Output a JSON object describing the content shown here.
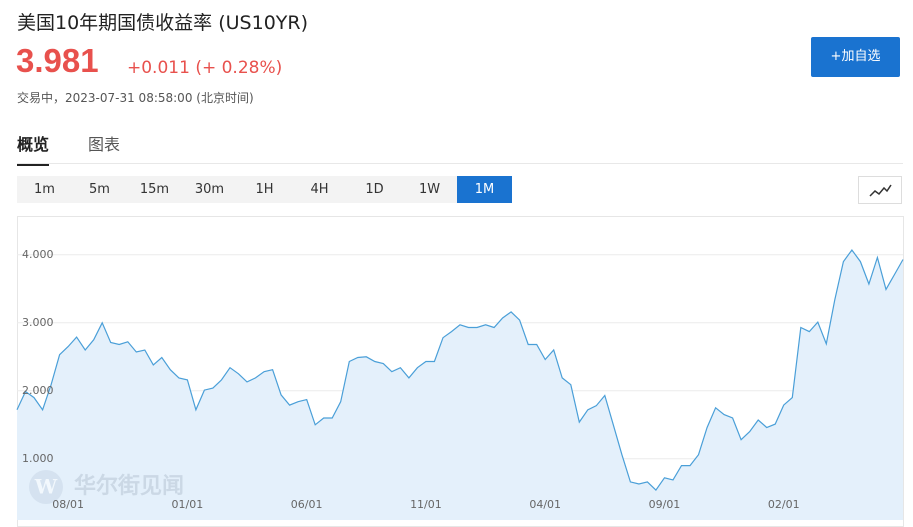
{
  "header": {
    "title": "美国10年期国债收益率",
    "code": "(US10YR)",
    "price": "3.981",
    "change": "+0.011",
    "change_pct": "(+ 0.28%)",
    "status": "交易中，2023-07-31 08:58:00",
    "timezone": "(北京时间)",
    "button": "+加自选"
  },
  "tabs": [
    "概览",
    "图表"
  ],
  "periods": [
    "1m",
    "5m",
    "15m",
    "30m",
    "1H",
    "4H",
    "1D",
    "1W",
    "1M"
  ],
  "active_period": "1M",
  "chart_data": {
    "type": "area",
    "watermark": "华尔街见闻",
    "color": "#4a9fd8",
    "fill": "#e4f0fb",
    "grid": true,
    "categories": [
      null,
      null,
      null,
      null,
      null,
      null,
      "08/01",
      null,
      null,
      null,
      null,
      null,
      null,
      null,
      null,
      null,
      null,
      null,
      null,
      null,
      "01/01",
      null,
      null,
      null,
      null,
      null,
      null,
      null,
      null,
      null,
      null,
      null,
      null,
      null,
      "06/01",
      null,
      null,
      null,
      null,
      null,
      null,
      null,
      null,
      null,
      null,
      null,
      null,
      null,
      "11/01",
      null,
      null,
      null,
      null,
      null,
      null,
      null,
      null,
      null,
      null,
      null,
      null,
      null,
      "04/01",
      null,
      null,
      null,
      null,
      null,
      null,
      null,
      null,
      null,
      null,
      null,
      null,
      null,
      "09/01",
      null,
      null,
      null,
      null,
      null,
      null,
      null,
      null,
      null,
      null,
      null,
      null,
      null,
      "02/01",
      null,
      null,
      null,
      null,
      null,
      null,
      null,
      null,
      null,
      null,
      null,
      null,
      null,
      null
    ],
    "values": [
      1.72,
      1.99,
      1.9,
      1.72,
      2.09,
      2.53,
      2.65,
      2.79,
      2.6,
      2.75,
      3.0,
      2.71,
      2.68,
      2.72,
      2.57,
      2.6,
      2.38,
      2.49,
      2.31,
      2.19,
      2.16,
      1.72,
      2.01,
      2.04,
      2.16,
      2.34,
      2.25,
      2.13,
      2.19,
      2.28,
      2.31,
      1.94,
      1.79,
      1.84,
      1.87,
      1.5,
      1.6,
      1.6,
      1.84,
      2.43,
      2.49,
      2.5,
      2.43,
      2.4,
      2.28,
      2.34,
      2.19,
      2.34,
      2.43,
      2.43,
      2.78,
      2.87,
      2.97,
      2.93,
      2.93,
      2.97,
      2.93,
      3.07,
      3.16,
      3.04,
      2.68,
      2.68,
      2.46,
      2.6,
      2.19,
      2.09,
      1.54,
      1.72,
      1.78,
      1.93,
      1.5,
      1.06,
      0.66,
      0.63,
      0.66,
      0.54,
      0.72,
      0.69,
      0.9,
      0.9,
      1.06,
      1.46,
      1.75,
      1.65,
      1.6,
      1.28,
      1.4,
      1.57,
      1.46,
      1.51,
      1.79,
      1.9,
      2.93,
      2.87,
      3.01,
      2.69,
      3.34,
      3.9,
      4.07,
      3.9,
      3.57,
      3.96,
      3.49,
      3.71,
      3.93
    ],
    "ylim": [
      0.1,
      4.57
    ],
    "yticks": [
      {
        "value": 1,
        "label": "1.000"
      },
      {
        "value": 2,
        "label": "2.000"
      },
      {
        "value": 3,
        "label": "3.000"
      },
      {
        "value": 4,
        "label": "4.000"
      }
    ]
  }
}
